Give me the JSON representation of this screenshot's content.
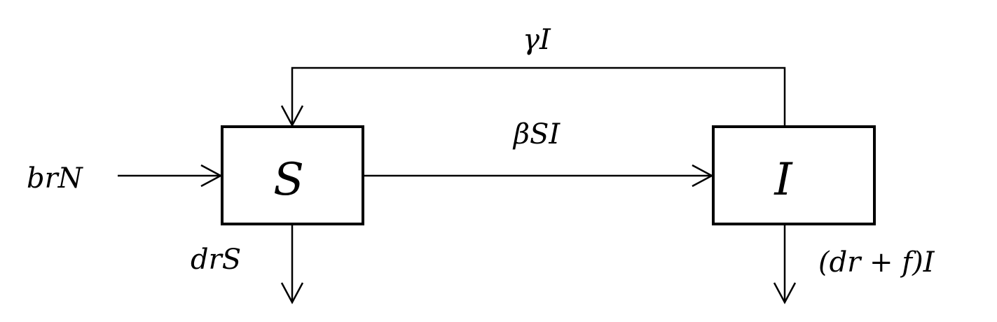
{
  "nodes": {
    "s": {
      "label": "S"
    },
    "i": {
      "label": "I"
    }
  },
  "edges": {
    "birth": {
      "label": "brN"
    },
    "infection": {
      "label": "βSI"
    },
    "recovery": {
      "label": "γI"
    },
    "death_s": {
      "label": "drS"
    },
    "death_i": {
      "label": "(dr + f)I"
    }
  }
}
